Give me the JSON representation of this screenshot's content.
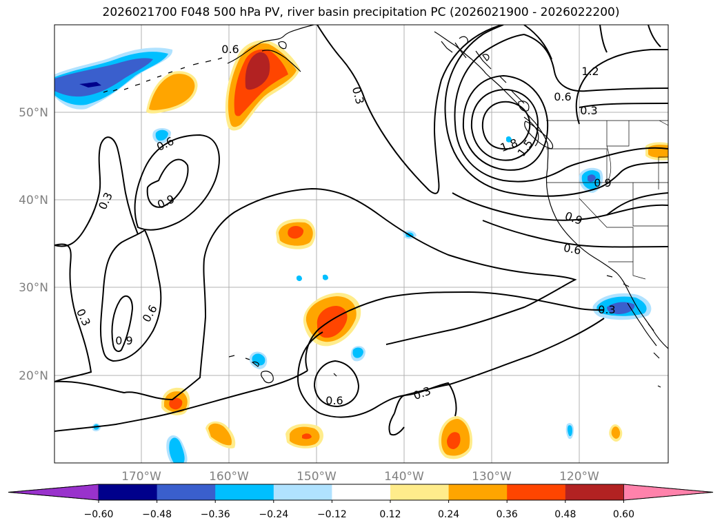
{
  "title": "2026021700 F048 500 hPa PV, river basin precipitation PC (2026021900 - 2026022200)",
  "map": {
    "lat_labels": [
      "50°N",
      "40°N",
      "30°N",
      "20°N"
    ],
    "lon_labels": [
      "170°W",
      "160°W",
      "150°W",
      "140°W",
      "130°W",
      "120°W"
    ]
  },
  "pv_contour_labels": [
    "0.6",
    "0.3",
    "0.6",
    "0.3",
    "1.2",
    "1.8",
    "1.5",
    "0.6",
    "0.3",
    "0.9",
    "0.9",
    "0.9",
    "0.6",
    "0.3",
    "0.6",
    "0.9",
    "0.3",
    "0.6",
    "0.3"
  ],
  "colorbar": {
    "colors": [
      "#9932cc",
      "#00008b",
      "#3a5fcd",
      "#00bfff",
      "#b0e2ff",
      "#ffffff",
      "#ffec8b",
      "#ffa500",
      "#ff4500",
      "#b22222",
      "#ff82ab"
    ],
    "tick_labels": [
      "−0.60",
      "−0.48",
      "−0.36",
      "−0.24",
      "−0.12",
      "0.12",
      "0.24",
      "0.36",
      "0.48",
      "0.60"
    ]
  }
}
